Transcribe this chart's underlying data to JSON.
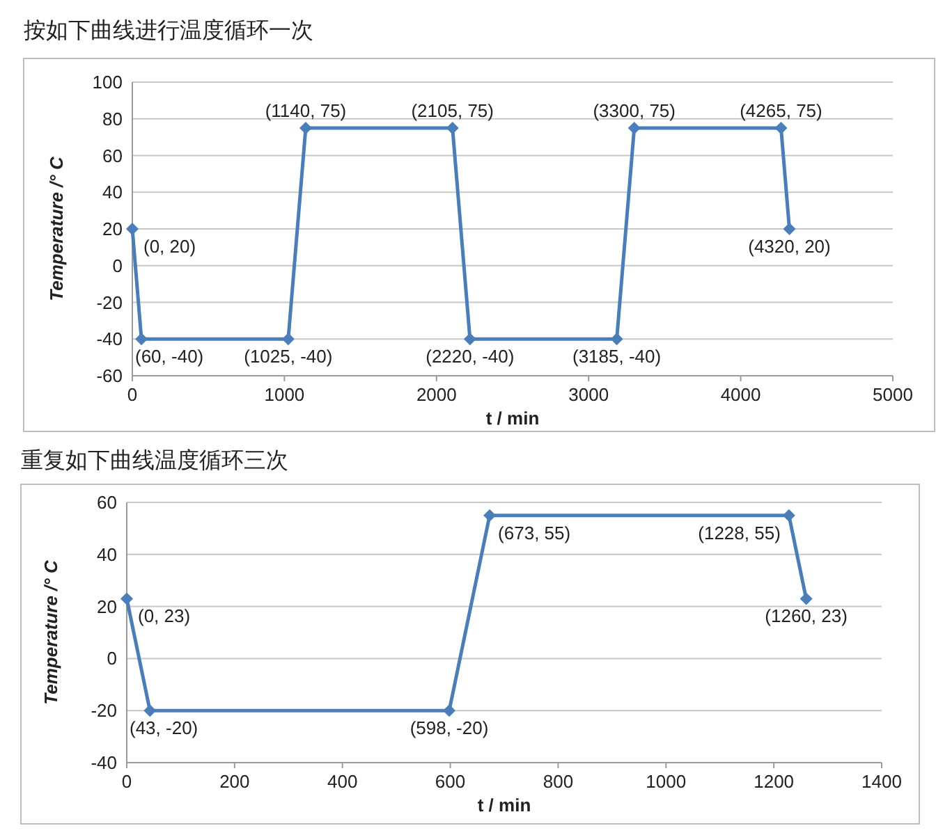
{
  "chart_data": [
    {
      "type": "line",
      "title": "按如下曲线进行温度循环一次",
      "xlabel": "t / min",
      "ylabel": "Temperature /° C",
      "color": "#4a7ebb",
      "marker": "diamond",
      "grid": "y",
      "x": [
        0,
        60,
        1025,
        1140,
        2105,
        2220,
        3185,
        3300,
        4265,
        4320
      ],
      "values": [
        20,
        -40,
        -40,
        75,
        75,
        -40,
        -40,
        75,
        75,
        20
      ],
      "value_labels": [
        "(0, 20)",
        "(60, -40)",
        "(1025, -40)",
        "(1140, 75)",
        "(2105, 75)",
        "(2220, -40)",
        "(3185, -40)",
        "(3300, 75)",
        "(4265, 75)",
        "(4320, 20)"
      ],
      "xlim": [
        0,
        5000
      ],
      "xticks": [
        0,
        1000,
        2000,
        3000,
        4000,
        5000
      ],
      "ylim": [
        -60,
        100
      ],
      "yticks": [
        -60,
        -40,
        -20,
        0,
        20,
        40,
        60,
        80,
        100
      ]
    },
    {
      "type": "line",
      "title": "重复如下曲线温度循环三次",
      "xlabel": "t / min",
      "ylabel": "Temperature /° C",
      "color": "#4a7ebb",
      "marker": "diamond",
      "grid": "y",
      "x": [
        0,
        43,
        598,
        673,
        1228,
        1260
      ],
      "values": [
        23,
        -20,
        -20,
        55,
        55,
        23
      ],
      "value_labels": [
        "(0, 23)",
        "(43, -20)",
        "(598, -20)",
        "(673, 55)",
        "(1228, 55)",
        "(1260, 23)"
      ],
      "xlim": [
        0,
        1400
      ],
      "xticks": [
        0,
        200,
        400,
        600,
        800,
        1000,
        1200,
        1400
      ],
      "ylim": [
        -40,
        60
      ],
      "yticks": [
        -40,
        -20,
        0,
        20,
        40,
        60
      ]
    }
  ]
}
